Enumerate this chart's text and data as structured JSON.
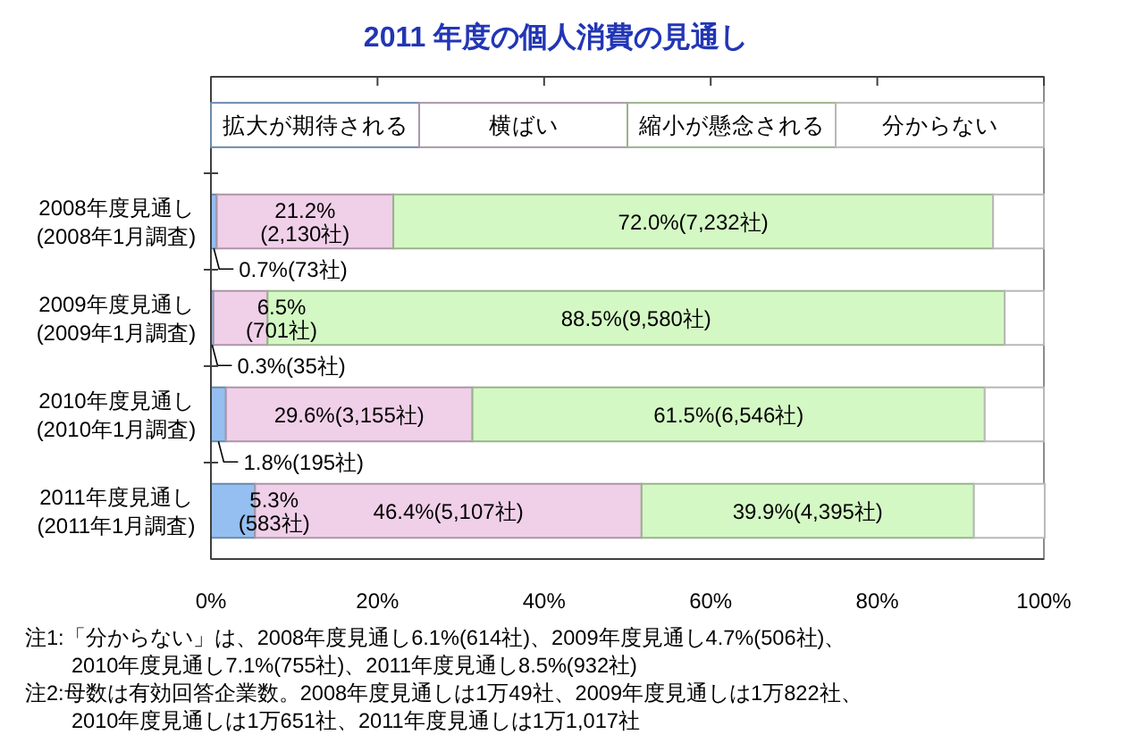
{
  "chart_data": {
    "type": "bar",
    "orientation": "horizontal",
    "stacked": true,
    "title": "2011 年度の個人消費の見通し",
    "categories": [
      "2008年度見通し\n(2008年1月調査)",
      "2009年度見通し\n(2009年1月調査)",
      "2010年度見通し\n(2010年1月調査)",
      "2011年度見通し\n(2011年1月調査)"
    ],
    "series": [
      {
        "name": "拡大が期待される",
        "color": "#95bff0",
        "values": [
          0.7,
          0.3,
          1.8,
          5.3
        ],
        "value_labels": [
          "0.7%(73社)",
          "0.3%(35社)",
          "1.8%(195社)",
          "5.3%\n(583社)"
        ]
      },
      {
        "name": "横ばい",
        "color": "#f0cfe8",
        "values": [
          21.2,
          6.5,
          29.6,
          46.4
        ],
        "value_labels": [
          "21.2%\n(2,130社)",
          "6.5%\n(701社)",
          "29.6%(3,155社)",
          "46.4%(5,107社)"
        ]
      },
      {
        "name": "縮小が懸念される",
        "color": "#d4f8c4",
        "values": [
          72.0,
          88.5,
          61.5,
          39.9
        ],
        "value_labels": [
          "72.0%(7,232社)",
          "88.5%(9,580社)",
          "61.5%(6,546社)",
          "39.9%(4,395社)"
        ]
      },
      {
        "name": "分からない",
        "color": "#ffffff",
        "values": [
          6.1,
          4.7,
          7.1,
          8.5
        ]
      }
    ],
    "xlim": [
      0,
      100
    ],
    "xticks": [
      {
        "value": 0,
        "label": "0%"
      },
      {
        "value": 20,
        "label": "20%"
      },
      {
        "value": 40,
        "label": "40%"
      },
      {
        "value": 60,
        "label": "60%"
      },
      {
        "value": 80,
        "label": "80%"
      },
      {
        "value": 100,
        "label": "100%"
      }
    ],
    "legend": "top",
    "annotations": [
      "注1:「分からない」は、2008年度見通し6.1%(614社)、2009年度見通し4.7%(506社)、\n2010年度見通し7.1%(755社)、2011年度見通し8.5%(932社)",
      "注2:母数は有効回答企業数。2008年度見通しは1万49社、2009年度見通しは1万822社、\n2010年度見通しは1万651社、2011年度見通しは1万1,017社"
    ]
  }
}
